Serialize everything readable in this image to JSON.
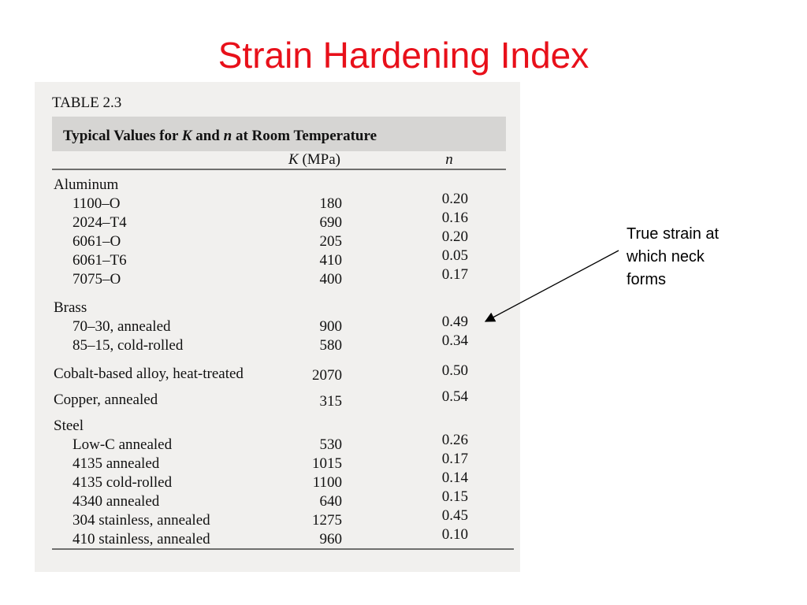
{
  "title": "Strain Hardening Index",
  "table": {
    "label": "TABLE 2.3",
    "caption": [
      "Typical Values for ",
      "K",
      " and ",
      "n",
      " at Room Temperature"
    ],
    "columns": [
      [
        "K",
        " (MPa)"
      ],
      "n"
    ],
    "groups": [
      {
        "name": "Aluminum",
        "rows": [
          {
            "material": "1100–O",
            "K": 180,
            "n": "0.20"
          },
          {
            "material": "2024–T4",
            "K": 690,
            "n": "0.16"
          },
          {
            "material": "6061–O",
            "K": 205,
            "n": "0.20"
          },
          {
            "material": "6061–T6",
            "K": 410,
            "n": "0.05"
          },
          {
            "material": "7075–O",
            "K": 400,
            "n": "0.17"
          }
        ]
      },
      {
        "name": "Brass",
        "rows": [
          {
            "material": "70–30, annealed",
            "K": 900,
            "n": "0.49"
          },
          {
            "material": "85–15, cold-rolled",
            "K": 580,
            "n": "0.34"
          }
        ]
      },
      {
        "name": "Cobalt-based alloy, heat-treated",
        "K": 2070,
        "n": "0.50"
      },
      {
        "name": "Copper, annealed",
        "K": 315,
        "n": "0.54"
      },
      {
        "name": "Steel",
        "rows": [
          {
            "material": "Low-C annealed",
            "K": 530,
            "n": "0.26"
          },
          {
            "material": "4135 annealed",
            "K": 1015,
            "n": "0.17"
          },
          {
            "material": "4135 cold-rolled",
            "K": 1100,
            "n": "0.14"
          },
          {
            "material": "4340 annealed",
            "K": 640,
            "n": "0.15"
          },
          {
            "material": "304 stainless, annealed",
            "K": 1275,
            "n": "0.45"
          },
          {
            "material": "410 stainless, annealed",
            "K": 960,
            "n": "0.10"
          }
        ]
      }
    ]
  },
  "annotation": [
    "True strain at",
    "which neck",
    "forms"
  ]
}
